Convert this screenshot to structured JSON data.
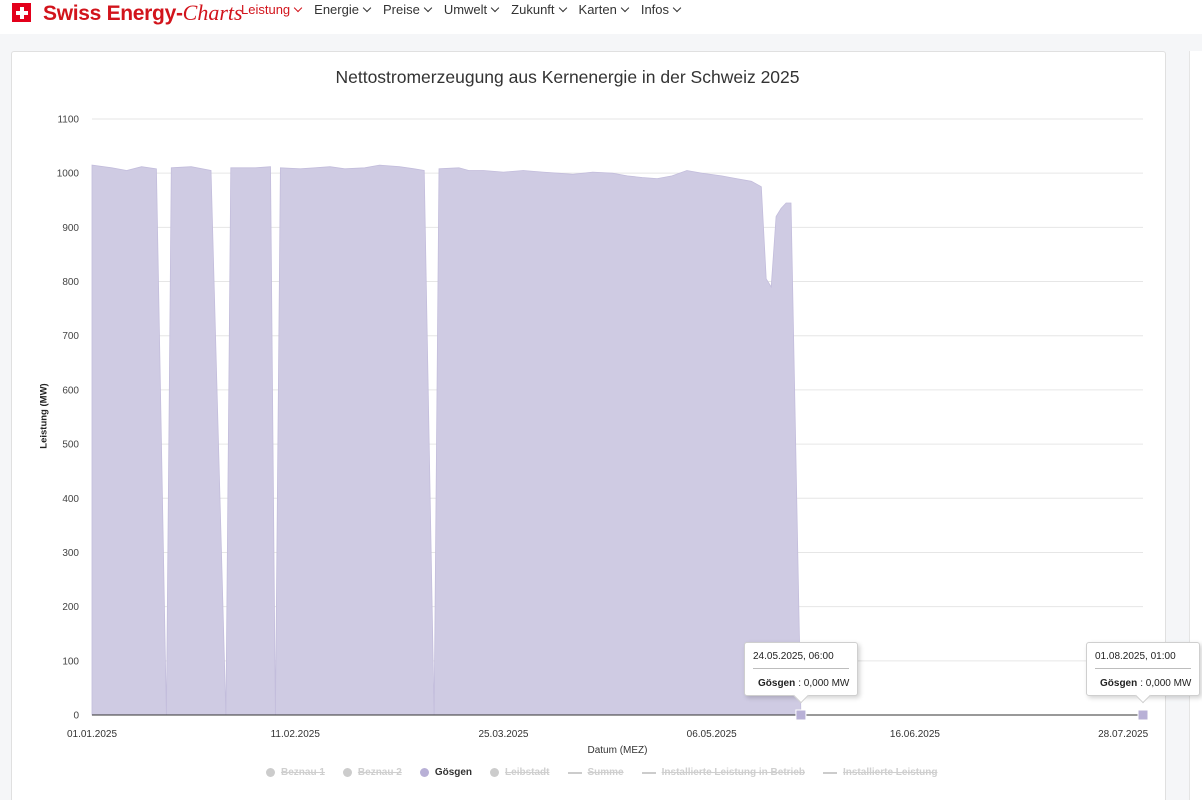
{
  "brand": {
    "part1": "Swiss Energy-",
    "part2": "Charts"
  },
  "nav": [
    {
      "label": "Leistung",
      "active": true
    },
    {
      "label": "Energie",
      "active": false
    },
    {
      "label": "Preise",
      "active": false
    },
    {
      "label": "Umwelt",
      "active": false
    },
    {
      "label": "Zukunft",
      "active": false
    },
    {
      "label": "Karten",
      "active": false
    },
    {
      "label": "Infos",
      "active": false
    }
  ],
  "colors": {
    "brand": "#d2141c",
    "series_fill": "#cfcbe3",
    "series_marker": "#b8b0d6",
    "hidden_series": "#cccccc"
  },
  "chart_data": {
    "type": "area",
    "title": "Nettostromerzeugung aus Kernenergie in der Schweiz 2025",
    "xlabel": "Datum (MEZ)",
    "ylabel": "Leistung (MW)",
    "ylim": [
      0,
      1100
    ],
    "yticks": [
      0,
      100,
      200,
      300,
      400,
      500,
      600,
      700,
      800,
      900,
      1000,
      1100
    ],
    "x_range": [
      "2025-01-01",
      "2025-08-01"
    ],
    "xtick_labels": [
      "01.01.2025",
      "11.02.2025",
      "25.03.2025",
      "06.05.2025",
      "16.06.2025",
      "28.07.2025"
    ],
    "xtick_dates": [
      "2025-01-01",
      "2025-02-11",
      "2025-03-25",
      "2025-05-06",
      "2025-06-16",
      "2025-07-28"
    ],
    "grid": true,
    "legend_position": "bottom",
    "series": [
      {
        "name": "Gösgen",
        "visible": true,
        "points": [
          [
            "2025-01-01",
            1015
          ],
          [
            "2025-01-05",
            1010
          ],
          [
            "2025-01-08",
            1005
          ],
          [
            "2025-01-11",
            1012
          ],
          [
            "2025-01-14",
            1008
          ],
          [
            "2025-01-16",
            0
          ],
          [
            "2025-01-17",
            1010
          ],
          [
            "2025-01-21",
            1012
          ],
          [
            "2025-01-25",
            1005
          ],
          [
            "2025-01-28",
            0
          ],
          [
            "2025-01-29",
            1010
          ],
          [
            "2025-02-03",
            1010
          ],
          [
            "2025-02-06",
            1012
          ],
          [
            "2025-02-07",
            0
          ],
          [
            "2025-02-08",
            1010
          ],
          [
            "2025-02-12",
            1008
          ],
          [
            "2025-02-15",
            1010
          ],
          [
            "2025-02-18",
            1012
          ],
          [
            "2025-02-21",
            1008
          ],
          [
            "2025-02-25",
            1010
          ],
          [
            "2025-02-28",
            1015
          ],
          [
            "2025-03-04",
            1012
          ],
          [
            "2025-03-07",
            1008
          ],
          [
            "2025-03-09",
            1005
          ],
          [
            "2025-03-11",
            0
          ],
          [
            "2025-03-12",
            1008
          ],
          [
            "2025-03-16",
            1010
          ],
          [
            "2025-03-18",
            1005
          ],
          [
            "2025-03-21",
            1005
          ],
          [
            "2025-03-25",
            1002
          ],
          [
            "2025-03-29",
            1005
          ],
          [
            "2025-04-02",
            1002
          ],
          [
            "2025-04-05",
            1000
          ],
          [
            "2025-04-08",
            998
          ],
          [
            "2025-04-12",
            1002
          ],
          [
            "2025-04-16",
            1000
          ],
          [
            "2025-04-19",
            995
          ],
          [
            "2025-04-22",
            992
          ],
          [
            "2025-04-25",
            990
          ],
          [
            "2025-04-28",
            995
          ],
          [
            "2025-05-01",
            1005
          ],
          [
            "2025-05-04",
            1000
          ],
          [
            "2025-05-08",
            995
          ],
          [
            "2025-05-11",
            990
          ],
          [
            "2025-05-14",
            985
          ],
          [
            "2025-05-16",
            975
          ],
          [
            "2025-05-17",
            805
          ],
          [
            "2025-05-18",
            790
          ],
          [
            "2025-05-19",
            920
          ],
          [
            "2025-05-20",
            935
          ],
          [
            "2025-05-21",
            945
          ],
          [
            "2025-05-22",
            945
          ],
          [
            "2025-05-24",
            0
          ],
          [
            "2025-08-01",
            0
          ]
        ]
      }
    ]
  },
  "legend": [
    {
      "label": "Beznau 1",
      "visible": false,
      "kind": "dot"
    },
    {
      "label": "Beznau 2",
      "visible": false,
      "kind": "dot"
    },
    {
      "label": "Gösgen",
      "visible": true,
      "kind": "dot"
    },
    {
      "label": "Leibstadt",
      "visible": false,
      "kind": "dot"
    },
    {
      "label": "Summe",
      "visible": false,
      "kind": "line"
    },
    {
      "label": "Installierte Leistung in Betrieb",
      "visible": false,
      "kind": "line"
    },
    {
      "label": "Installierte Leistung",
      "visible": false,
      "kind": "line"
    }
  ],
  "tooltips": [
    {
      "date": "24.05.2025, 06:00",
      "series": "Gösgen",
      "value": ": 0,000 MW",
      "at": "2025-05-24"
    },
    {
      "date": "01.08.2025, 01:00",
      "series": "Gösgen",
      "value": ": 0,000 MW",
      "at": "2025-08-01"
    }
  ]
}
